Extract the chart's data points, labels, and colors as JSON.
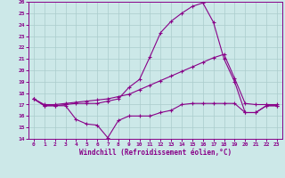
{
  "xlabel": "Windchill (Refroidissement éolien,°C)",
  "background_color": "#cce8e8",
  "grid_color": "#aacccc",
  "line_color": "#880088",
  "xlim": [
    -0.5,
    23.5
  ],
  "ylim": [
    14,
    26
  ],
  "xticks": [
    0,
    1,
    2,
    3,
    4,
    5,
    6,
    7,
    8,
    9,
    10,
    11,
    12,
    13,
    14,
    15,
    16,
    17,
    18,
    19,
    20,
    21,
    22,
    23
  ],
  "yticks": [
    14,
    15,
    16,
    17,
    18,
    19,
    20,
    21,
    22,
    23,
    24,
    25,
    26
  ],
  "series1_x": [
    0,
    1,
    2,
    3,
    4,
    5,
    6,
    7,
    8,
    9,
    10,
    11,
    12,
    13,
    14,
    15,
    16,
    17,
    18,
    19,
    20,
    21,
    22,
    23
  ],
  "series1_y": [
    17.5,
    16.9,
    16.9,
    16.9,
    15.7,
    15.3,
    15.2,
    14.1,
    15.6,
    16.0,
    16.0,
    16.0,
    16.3,
    16.5,
    17.0,
    17.1,
    17.1,
    17.1,
    17.1,
    17.1,
    16.3,
    16.3,
    16.9,
    16.9
  ],
  "series2_x": [
    0,
    1,
    2,
    3,
    4,
    5,
    6,
    7,
    8,
    9,
    10,
    11,
    12,
    13,
    14,
    15,
    16,
    17,
    18,
    19,
    20,
    21,
    22,
    23
  ],
  "series2_y": [
    17.5,
    17.0,
    17.0,
    17.1,
    17.2,
    17.3,
    17.4,
    17.5,
    17.7,
    17.9,
    18.3,
    18.7,
    19.1,
    19.5,
    19.9,
    20.3,
    20.7,
    21.1,
    21.4,
    19.3,
    17.1,
    17.0,
    17.0,
    17.0
  ],
  "series3_x": [
    0,
    1,
    2,
    3,
    4,
    5,
    6,
    7,
    8,
    9,
    10,
    11,
    12,
    13,
    14,
    15,
    16,
    17,
    18,
    19,
    20,
    21,
    22,
    23
  ],
  "series3_y": [
    17.5,
    16.9,
    16.9,
    17.0,
    17.1,
    17.1,
    17.1,
    17.3,
    17.5,
    18.5,
    19.2,
    21.2,
    23.3,
    24.3,
    25.0,
    25.6,
    25.9,
    24.2,
    21.0,
    19.0,
    16.3,
    16.3,
    16.9,
    16.9
  ]
}
